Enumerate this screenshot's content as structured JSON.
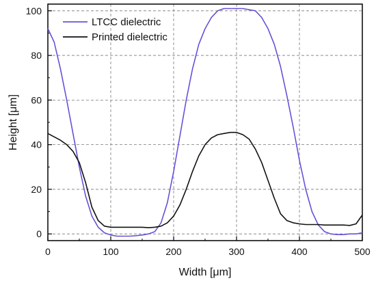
{
  "chart_data": {
    "type": "line",
    "xlabel": "Width [μm]",
    "ylabel": "Height [μm]",
    "xlim": [
      0,
      500
    ],
    "ylim": [
      -3,
      103
    ],
    "x_ticks": [
      0,
      100,
      200,
      300,
      400,
      500
    ],
    "y_ticks": [
      0,
      20,
      40,
      60,
      80,
      100
    ],
    "grid": true,
    "legend_position": "top-left",
    "series": [
      {
        "name": "LTCC dielectric",
        "color": "#6a4fd8",
        "points": [
          [
            0,
            92
          ],
          [
            10,
            86
          ],
          [
            20,
            74
          ],
          [
            30,
            60
          ],
          [
            40,
            45
          ],
          [
            50,
            30
          ],
          [
            60,
            17
          ],
          [
            70,
            8
          ],
          [
            80,
            3
          ],
          [
            90,
            0.5
          ],
          [
            100,
            -0.5
          ],
          [
            110,
            -1
          ],
          [
            120,
            -1
          ],
          [
            130,
            -1
          ],
          [
            140,
            -0.8
          ],
          [
            150,
            -0.5
          ],
          [
            160,
            0
          ],
          [
            170,
            1
          ],
          [
            180,
            5
          ],
          [
            190,
            14
          ],
          [
            200,
            28
          ],
          [
            210,
            44
          ],
          [
            220,
            60
          ],
          [
            230,
            74
          ],
          [
            240,
            85
          ],
          [
            250,
            92
          ],
          [
            260,
            97
          ],
          [
            270,
            100
          ],
          [
            280,
            101
          ],
          [
            290,
            101
          ],
          [
            300,
            101
          ],
          [
            310,
            101
          ],
          [
            320,
            100.5
          ],
          [
            330,
            100
          ],
          [
            340,
            97
          ],
          [
            350,
            92
          ],
          [
            360,
            85
          ],
          [
            370,
            75
          ],
          [
            380,
            62
          ],
          [
            390,
            48
          ],
          [
            400,
            33
          ],
          [
            410,
            20
          ],
          [
            420,
            10
          ],
          [
            430,
            4
          ],
          [
            440,
            1
          ],
          [
            450,
            0
          ],
          [
            460,
            -0.3
          ],
          [
            470,
            -0.3
          ],
          [
            480,
            0
          ],
          [
            490,
            0
          ],
          [
            500,
            0.5
          ]
        ]
      },
      {
        "name": "Printed dielectric",
        "color": "#111111",
        "points": [
          [
            0,
            45
          ],
          [
            10,
            43.5
          ],
          [
            20,
            42
          ],
          [
            30,
            40
          ],
          [
            40,
            37
          ],
          [
            50,
            32
          ],
          [
            60,
            23
          ],
          [
            70,
            12
          ],
          [
            80,
            6
          ],
          [
            90,
            3.5
          ],
          [
            100,
            3
          ],
          [
            110,
            3
          ],
          [
            120,
            3
          ],
          [
            130,
            3
          ],
          [
            140,
            3
          ],
          [
            150,
            3
          ],
          [
            160,
            2.8
          ],
          [
            170,
            3
          ],
          [
            180,
            3.5
          ],
          [
            190,
            5
          ],
          [
            200,
            8
          ],
          [
            210,
            13
          ],
          [
            220,
            20
          ],
          [
            230,
            28
          ],
          [
            240,
            35
          ],
          [
            250,
            40
          ],
          [
            260,
            43
          ],
          [
            270,
            44.5
          ],
          [
            280,
            45
          ],
          [
            290,
            45.5
          ],
          [
            300,
            45.5
          ],
          [
            310,
            44.5
          ],
          [
            320,
            42.5
          ],
          [
            330,
            38
          ],
          [
            340,
            32
          ],
          [
            350,
            24
          ],
          [
            360,
            16
          ],
          [
            370,
            9
          ],
          [
            380,
            6
          ],
          [
            390,
            5
          ],
          [
            400,
            4.5
          ],
          [
            410,
            4.2
          ],
          [
            420,
            4.2
          ],
          [
            430,
            4.2
          ],
          [
            440,
            4
          ],
          [
            450,
            4
          ],
          [
            460,
            4
          ],
          [
            470,
            4
          ],
          [
            480,
            3.8
          ],
          [
            490,
            4.5
          ],
          [
            500,
            8.5
          ]
        ]
      }
    ]
  }
}
